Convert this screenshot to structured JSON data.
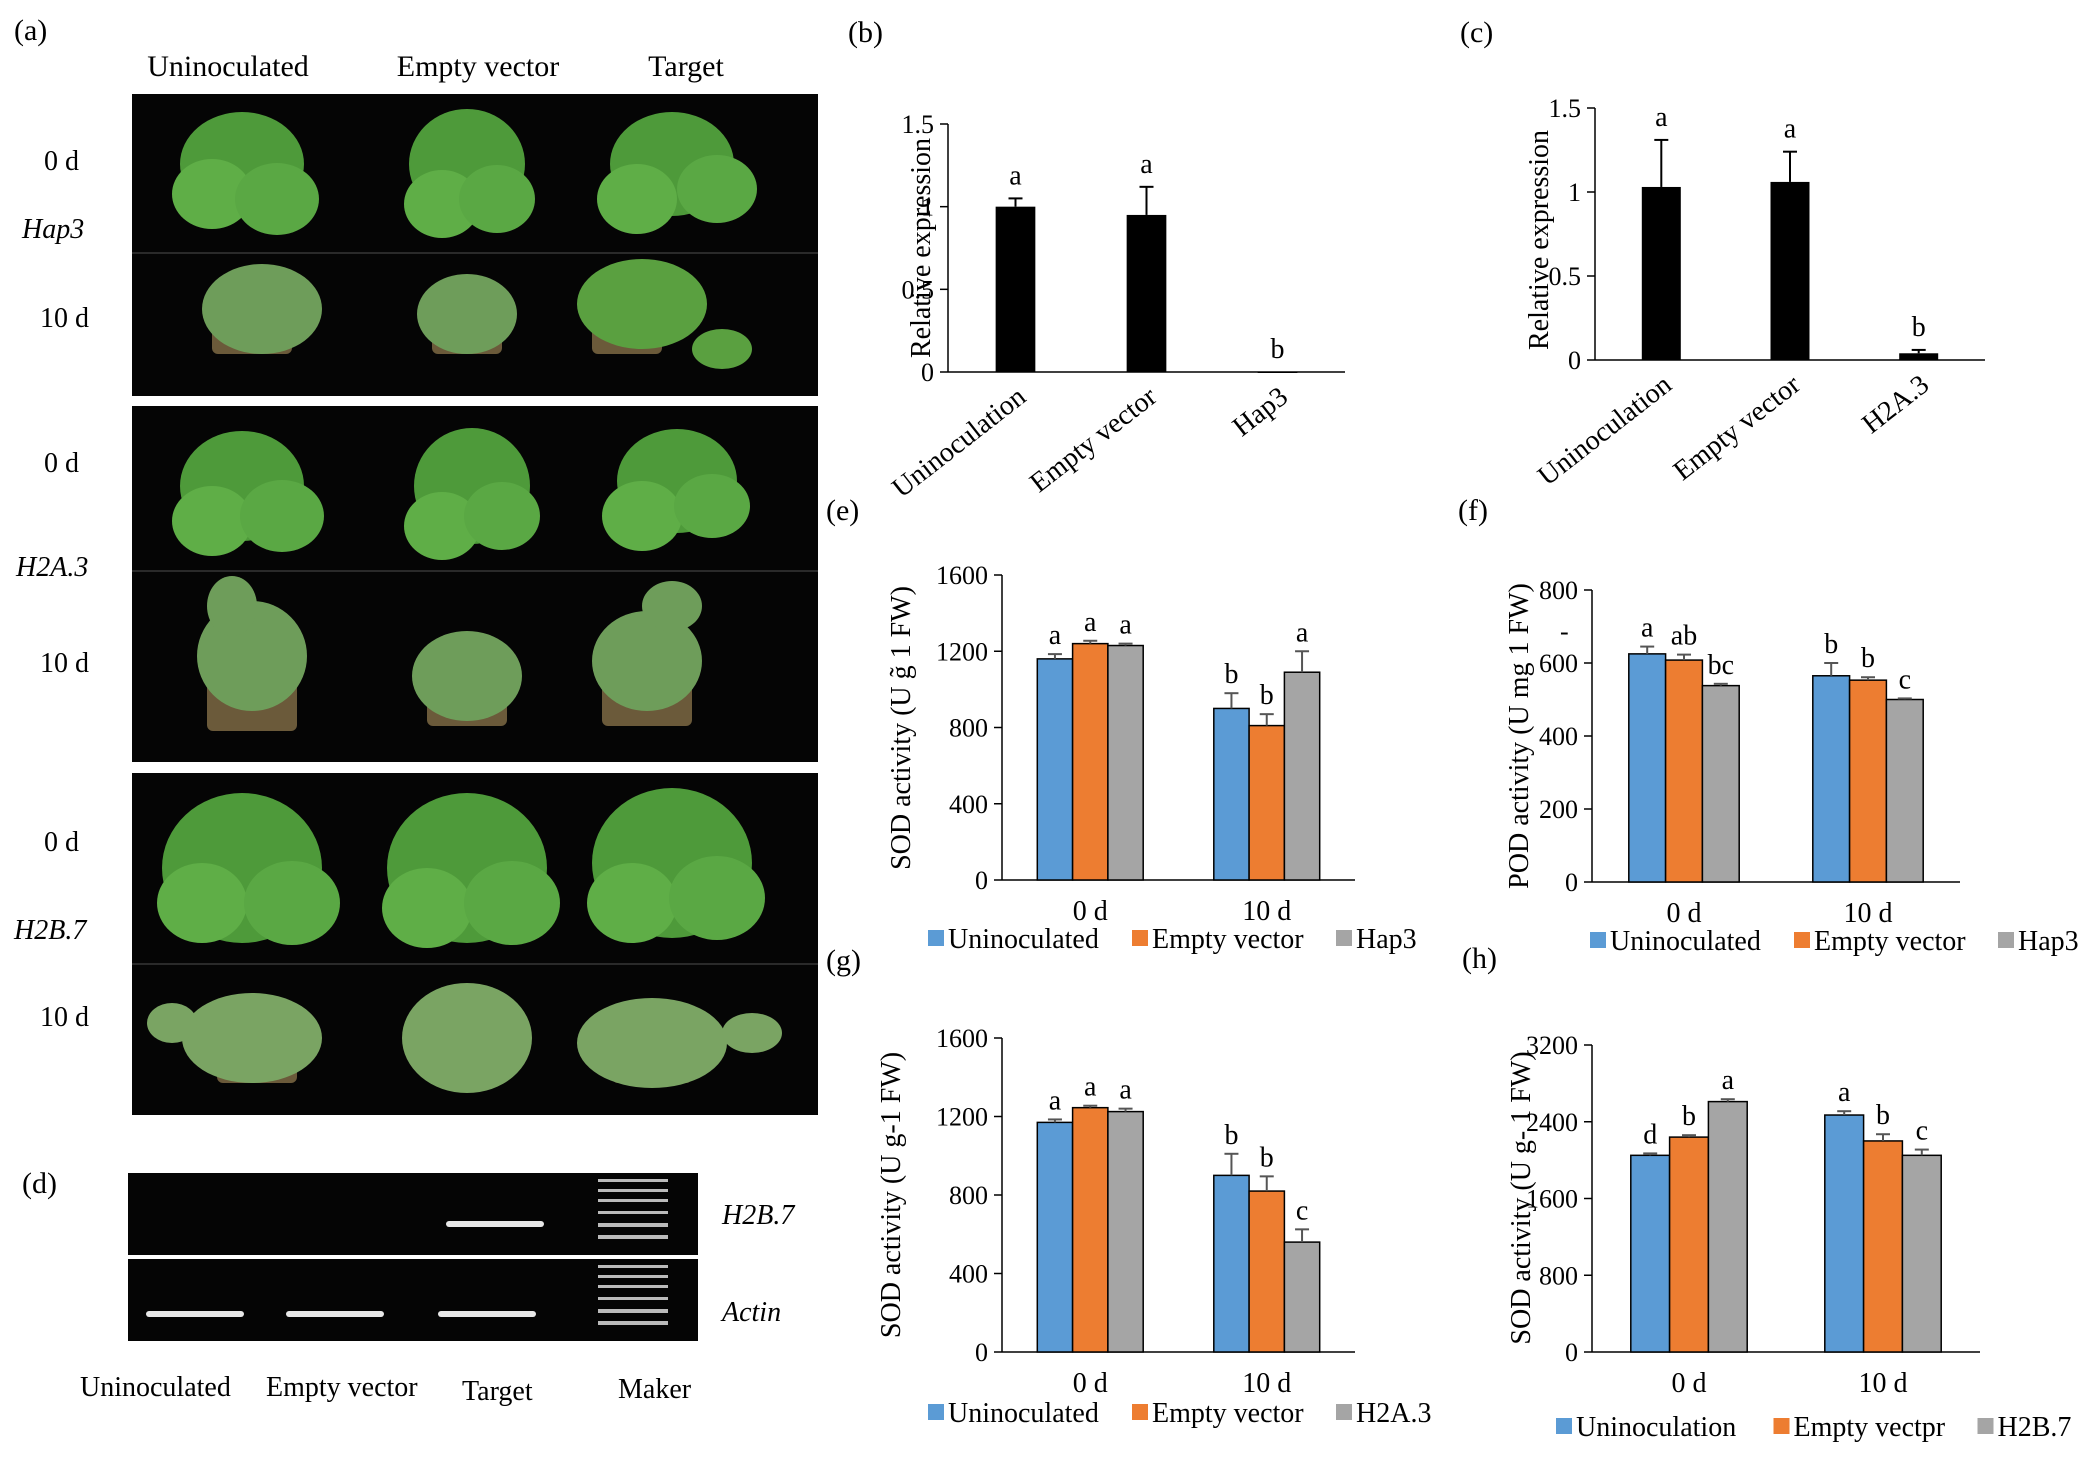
{
  "panel_a": {
    "label": "(a)",
    "columns": [
      "Uninoculated",
      "Empty vector",
      "Target"
    ],
    "groups": [
      {
        "gene": "Hap3",
        "days": [
          "0 d",
          "10 d"
        ]
      },
      {
        "gene": "H2A.3",
        "days": [
          "0 d",
          "10 d"
        ]
      },
      {
        "gene": "H2B.7",
        "days": [
          "0 d",
          "10 d"
        ]
      }
    ]
  },
  "panel_d": {
    "label": "(d)",
    "rows": [
      "H2B.7",
      "Actin"
    ],
    "lanes": [
      "Uninoculated",
      "Empty vector",
      "Target",
      "Maker"
    ]
  },
  "colors": {
    "uninoculated": "#5b9bd5",
    "empty_vector": "#ed7d31",
    "target": "#a5a5a5",
    "black_bar": "#000000"
  },
  "chart_data": [
    {
      "id": "b",
      "label": "(b)",
      "type": "bar",
      "ylabel": "Relative expression",
      "categories": [
        "Uninoculation",
        "Empty vector",
        "Hap3"
      ],
      "values": [
        1.0,
        0.95,
        0.0
      ],
      "errors": [
        0.05,
        0.17,
        0.0
      ],
      "letters": [
        "a",
        "a",
        "b"
      ],
      "ylim": [
        0,
        1.5
      ],
      "yticks": [
        "0",
        "0.5",
        "1",
        "1.5"
      ]
    },
    {
      "id": "c",
      "label": "(c)",
      "type": "bar",
      "ylabel": "Relative expression",
      "categories": [
        "Uninoculation",
        "Empty vector",
        "H2A.3"
      ],
      "values": [
        1.03,
        1.06,
        0.04
      ],
      "errors": [
        0.28,
        0.18,
        0.02
      ],
      "letters": [
        "a",
        "a",
        "b"
      ],
      "ylim": [
        0,
        1.5
      ],
      "yticks": [
        "0",
        "0.5",
        "1",
        "1.5"
      ]
    },
    {
      "id": "e",
      "label": "(e)",
      "type": "bar",
      "ylabel": "SOD activity (U g̃ 1 FW)",
      "categories": [
        "0 d",
        "10 d"
      ],
      "series": [
        {
          "name": "Uninoculated",
          "values": [
            1160,
            900
          ],
          "errors": [
            25,
            80
          ],
          "letters": [
            "a",
            "b"
          ]
        },
        {
          "name": "Empty vector",
          "values": [
            1240,
            810
          ],
          "errors": [
            15,
            60
          ],
          "letters": [
            "a",
            "b"
          ]
        },
        {
          "name": "Hap3",
          "values": [
            1230,
            1090
          ],
          "errors": [
            10,
            110
          ],
          "letters": [
            "a",
            "a"
          ]
        }
      ],
      "ylim": [
        0,
        1600
      ],
      "yticks": [
        "0",
        "400",
        "800",
        "1200",
        "1600"
      ]
    },
    {
      "id": "f",
      "label": "(f)",
      "type": "bar",
      "ylabel": "POD activity (U mg  1 FW)",
      "ylabel_mark": "-",
      "categories": [
        "0 d",
        "10 d"
      ],
      "series": [
        {
          "name": "Uninoculated",
          "values": [
            625,
            565
          ],
          "errors": [
            20,
            35
          ],
          "letters": [
            "a",
            "b"
          ]
        },
        {
          "name": "Empty vector",
          "values": [
            608,
            553
          ],
          "errors": [
            15,
            8
          ],
          "letters": [
            "ab",
            "b"
          ]
        },
        {
          "name": "Hap3",
          "values": [
            538,
            500
          ],
          "errors": [
            5,
            3
          ],
          "letters": [
            "bc",
            "c"
          ]
        }
      ],
      "ylim": [
        0,
        800
      ],
      "yticks": [
        "0",
        "200",
        "400",
        "600",
        "800"
      ]
    },
    {
      "id": "g",
      "label": "(g)",
      "type": "bar",
      "ylabel": "SOD activity (U g‑1 FW)",
      "categories": [
        "0 d",
        "10 d"
      ],
      "series": [
        {
          "name": "Uninoculated",
          "values": [
            1170,
            900
          ],
          "errors": [
            15,
            110
          ],
          "letters": [
            "a",
            "b"
          ]
        },
        {
          "name": "Empty vector",
          "values": [
            1245,
            820
          ],
          "errors": [
            10,
            75
          ],
          "letters": [
            "a",
            "b"
          ]
        },
        {
          "name": "H2A.3",
          "values": [
            1225,
            560
          ],
          "errors": [
            15,
            65
          ],
          "letters": [
            "a",
            "c"
          ]
        }
      ],
      "ylim": [
        0,
        1600
      ],
      "yticks": [
        "0",
        "400",
        "800",
        "1200",
        "1600"
      ]
    },
    {
      "id": "h",
      "label": "(h)",
      "type": "bar",
      "ylabel": "SOD activity (U g- 1 FW)",
      "categories": [
        "0 d",
        "10 d"
      ],
      "series": [
        {
          "name": "Uninoculation",
          "values": [
            2050,
            2470
          ],
          "errors": [
            20,
            40
          ],
          "letters": [
            "d",
            "a"
          ]
        },
        {
          "name": "Empty vectpr",
          "values": [
            2240,
            2200
          ],
          "errors": [
            20,
            70
          ],
          "letters": [
            "b",
            "b"
          ]
        },
        {
          "name": "H2B.7",
          "values": [
            2610,
            2050
          ],
          "errors": [
            25,
            60
          ],
          "letters": [
            "a",
            "c"
          ]
        }
      ],
      "ylim": [
        0,
        3200
      ],
      "yticks": [
        "0",
        "800",
        "1600",
        "2400",
        "3200"
      ]
    }
  ]
}
